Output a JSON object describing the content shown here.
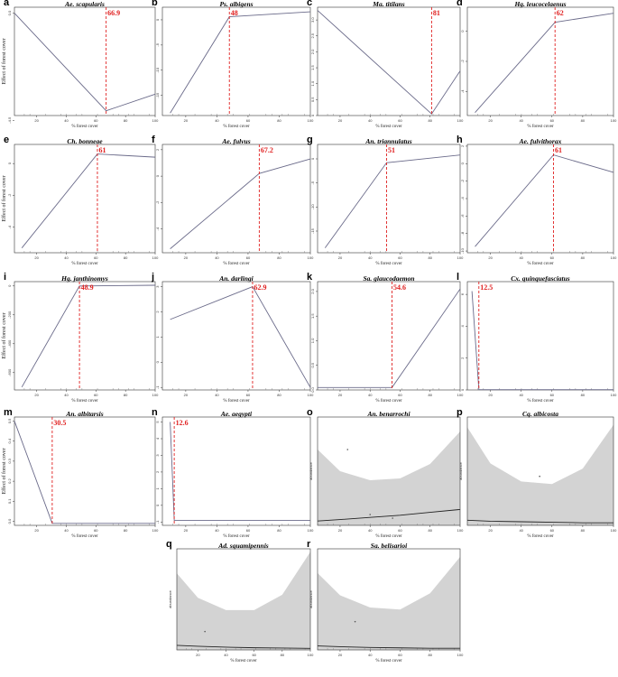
{
  "colors": {
    "line": "#6b6b8a",
    "breakpoint": "#e02020",
    "ribbon": "#d3d3d3",
    "fit": "#222222",
    "axis": "#333333"
  },
  "chart_data": [
    {
      "letter": "a",
      "title": "Ae. scapularis",
      "type": "line",
      "xlabel": "% forest cover",
      "ylabel": "Effect of forest cover",
      "x": [
        5,
        66.9,
        100
      ],
      "y": [
        0.0,
        -4.1,
        -3.4
      ],
      "breakpoint": 66.9,
      "breakpoint_label": "66.9",
      "xlim": [
        5,
        100
      ],
      "ylim": [
        -4.3,
        0.25
      ],
      "xticks": [
        20,
        40,
        60,
        80,
        100
      ],
      "yticks": [
        0,
        -4.5
      ],
      "ytick_labels": [
        "0.0",
        "-4.5"
      ]
    },
    {
      "letter": "b",
      "title": "Ps. albigens",
      "type": "line",
      "xlabel": "% forest cover",
      "ylabel": "",
      "x": [
        10,
        48,
        100
      ],
      "y": [
        -18.5,
        0.6,
        1.6
      ],
      "breakpoint": 48,
      "breakpoint_label": "48",
      "xlim": [
        5,
        100
      ],
      "ylim": [
        -19,
        2.5
      ],
      "xticks": [
        20,
        40,
        60,
        80,
        100
      ],
      "yticks": [
        0,
        -5,
        -10,
        -15
      ],
      "ytick_labels": [
        "0",
        "-5",
        "-10",
        "-15"
      ]
    },
    {
      "letter": "c",
      "title": "Ma. titilans",
      "type": "line",
      "xlabel": "% forest cover",
      "ylabel": "",
      "x": [
        5,
        81,
        100
      ],
      "y": [
        3.3,
        0.05,
        1.4
      ],
      "breakpoint": 81,
      "breakpoint_label": "81",
      "xlim": [
        5,
        100
      ],
      "ylim": [
        0,
        3.4
      ],
      "xticks": [
        20,
        40,
        60,
        80,
        100
      ],
      "yticks": [
        0,
        0.5,
        1,
        1.5,
        2,
        2.5,
        3
      ],
      "ytick_labels": [
        "0",
        "0.5",
        "1.0",
        "1.5",
        "2.0",
        "2.5",
        "3.0"
      ]
    },
    {
      "letter": "d",
      "title": "Hg. leucocelaenus",
      "type": "line",
      "xlabel": "% forest cover",
      "ylabel": "",
      "x": [
        10,
        62,
        100
      ],
      "y": [
        -5.4,
        0.6,
        1.2
      ],
      "breakpoint": 62,
      "breakpoint_label": "62",
      "xlim": [
        5,
        100
      ],
      "ylim": [
        -5.6,
        1.6
      ],
      "xticks": [
        20,
        40,
        60,
        80,
        100
      ],
      "yticks": [
        0,
        -2,
        -4
      ],
      "ytick_labels": [
        "0",
        "-2",
        "-4"
      ]
    },
    {
      "letter": "e",
      "title": "Ch. bonneae",
      "type": "line",
      "xlabel": "% forest cover",
      "ylabel": "Effect of forest cover",
      "x": [
        10,
        61,
        100
      ],
      "y": [
        -5.3,
        0.6,
        0.4
      ],
      "breakpoint": 61,
      "breakpoint_label": "61",
      "xlim": [
        5,
        100
      ],
      "ylim": [
        -5.6,
        1.2
      ],
      "xticks": [
        20,
        40,
        60,
        80,
        100
      ],
      "yticks": [
        0,
        -2,
        -4
      ],
      "ytick_labels": [
        "0",
        "-2",
        "-4"
      ]
    },
    {
      "letter": "f",
      "title": "Ae. fulvus",
      "type": "line",
      "xlabel": "% forest cover",
      "ylabel": "",
      "x": [
        10,
        67.2,
        100
      ],
      "y": [
        -5.5,
        0.2,
        1.3
      ],
      "breakpoint": 67.2,
      "breakpoint_label": "67.2",
      "xlim": [
        5,
        100
      ],
      "ylim": [
        -5.8,
        2.4
      ],
      "xticks": [
        20,
        40,
        60,
        80,
        100
      ],
      "yticks": [
        2,
        0,
        -2,
        -4
      ],
      "ytick_labels": [
        "2",
        "0",
        "-2",
        "-4"
      ]
    },
    {
      "letter": "g",
      "title": "An. triannulatus",
      "type": "line",
      "xlabel": "% forest cover",
      "ylabel": "",
      "x": [
        10,
        51,
        100
      ],
      "y": [
        -18.5,
        -0.8,
        0.8
      ],
      "breakpoint": 51,
      "breakpoint_label": "51",
      "xlim": [
        5,
        100
      ],
      "ylim": [
        -19.5,
        3
      ],
      "xticks": [
        20,
        40,
        60,
        80,
        100
      ],
      "yticks": [
        0,
        -5,
        -10,
        -15
      ],
      "ytick_labels": [
        "0",
        "-5",
        "-10",
        "-15"
      ]
    },
    {
      "letter": "h",
      "title": "Ae. fulvithorax",
      "type": "line",
      "xlabel": "% forest cover",
      "ylabel": "",
      "x": [
        10,
        61,
        100
      ],
      "y": [
        -9.5,
        1.0,
        -1.0
      ],
      "breakpoint": 61,
      "breakpoint_label": "61",
      "xlim": [
        5,
        100
      ],
      "ylim": [
        -10.2,
        2.2
      ],
      "xticks": [
        20,
        40,
        60,
        80,
        100
      ],
      "yticks": [
        2,
        0,
        -2,
        -4,
        -6,
        -8,
        -10
      ],
      "ytick_labels": [
        "2",
        "0",
        "-2",
        "-4",
        "-6",
        "-8",
        "-10"
      ]
    },
    {
      "letter": "i",
      "title": "Hg. janthinomys",
      "type": "line",
      "xlabel": "% forest cover",
      "ylabel": "Effect of forest cover",
      "x": [
        10,
        48.9,
        100
      ],
      "y": [
        -700,
        0,
        5
      ],
      "breakpoint": 48.9,
      "breakpoint_label": "48.9",
      "xlim": [
        5,
        100
      ],
      "ylim": [
        -720,
        30
      ],
      "xticks": [
        20,
        40,
        60,
        80,
        100
      ],
      "yticks": [
        0,
        -200,
        -400,
        -600
      ],
      "ytick_labels": [
        "0",
        "-200",
        "-400",
        "-600"
      ]
    },
    {
      "letter": "j",
      "title": "An. darlingi",
      "type": "line",
      "xlabel": "% forest cover",
      "ylabel": "",
      "x": [
        10,
        62.9,
        100
      ],
      "y": [
        1.7,
        3.0,
        -1.0
      ],
      "breakpoint": 62.9,
      "breakpoint_label": "62.9",
      "xlim": [
        5,
        100
      ],
      "ylim": [
        -1.1,
        3.2
      ],
      "xticks": [
        20,
        40,
        60,
        80,
        100
      ],
      "yticks": [
        3,
        2,
        1,
        0,
        -1
      ],
      "ytick_labels": [
        "3",
        "2",
        "1",
        "0",
        "-1"
      ]
    },
    {
      "letter": "k",
      "title": "Sa. glaucodaemon",
      "type": "line",
      "xlabel": "% forest cover",
      "ylabel": "",
      "x": [
        5,
        54.6,
        100
      ],
      "y": [
        0.05,
        0.05,
        2.05
      ],
      "breakpoint": 54.6,
      "breakpoint_label": "54.6",
      "xlim": [
        5,
        100
      ],
      "ylim": [
        0,
        2.2
      ],
      "xticks": [
        20,
        40,
        60,
        80,
        100
      ],
      "yticks": [
        0,
        0.5,
        1,
        1.5,
        2
      ],
      "ytick_labels": [
        "0.0",
        "0.5",
        "1.0",
        "1.5",
        "2.0"
      ]
    },
    {
      "letter": "l",
      "title": "Cx. quinquefasciatus",
      "type": "line",
      "xlabel": "% forest cover",
      "ylabel": "",
      "x": [
        8,
        12.5,
        100
      ],
      "y": [
        6.2,
        0.02,
        0.02
      ],
      "breakpoint": 12.5,
      "breakpoint_label": "12.5",
      "xlim": [
        5,
        100
      ],
      "ylim": [
        0,
        6.8
      ],
      "xticks": [
        20,
        40,
        60,
        80,
        100
      ],
      "yticks": [
        0,
        2,
        4,
        6
      ],
      "ytick_labels": [
        "0",
        "2",
        "4",
        "6"
      ]
    },
    {
      "letter": "m",
      "title": "An. albitarsis",
      "type": "line",
      "xlabel": "% forest cover",
      "ylabel": "Effect of forest cover",
      "x": [
        5,
        30.5,
        100
      ],
      "y": [
        0.5,
        -0.01,
        -0.01
      ],
      "breakpoint": 30.5,
      "breakpoint_label": "30.5",
      "xlim": [
        5,
        100
      ],
      "ylim": [
        -0.02,
        0.52
      ],
      "xticks": [
        20,
        40,
        60,
        80,
        100
      ],
      "yticks": [
        0,
        0.1,
        0.2,
        0.3,
        0.4,
        0.5
      ],
      "ytick_labels": [
        "0.0",
        "0.1",
        "0.2",
        "0.3",
        "0.4",
        "0.5"
      ]
    },
    {
      "letter": "n",
      "title": "Ae. aegypti",
      "type": "line",
      "xlabel": "% forest cover",
      "ylabel": "",
      "x": [
        10,
        12.6,
        100
      ],
      "y": [
        5.0,
        -0.9,
        -0.9
      ],
      "breakpoint": 12.6,
      "breakpoint_label": "12.6",
      "xlim": [
        5,
        100
      ],
      "ylim": [
        -1.2,
        5.3
      ],
      "xticks": [
        20,
        40,
        60,
        80,
        100
      ],
      "yticks": [
        5,
        4,
        3,
        2,
        1,
        0,
        -1
      ],
      "ytick_labels": [
        "5",
        "4",
        "3",
        "2",
        "1",
        "0",
        "-1"
      ]
    },
    {
      "letter": "o",
      "title": "An. benarrochi",
      "type": "area",
      "xlabel": "% forest cover",
      "ylabel": "abundance",
      "x": [
        5,
        20,
        40,
        60,
        80,
        100
      ],
      "fit": [
        0.12,
        0.16,
        0.22,
        0.28,
        0.36,
        0.44
      ],
      "upper": [
        2.1,
        1.5,
        1.25,
        1.3,
        1.7,
        2.6
      ],
      "lower": [
        0,
        0,
        0,
        0,
        0,
        0
      ],
      "points": [
        [
          25,
          2.1
        ],
        [
          40,
          0.3
        ],
        [
          55,
          0.2
        ]
      ],
      "xlim": [
        5,
        100
      ],
      "ylim": [
        0,
        3
      ],
      "xticks": [
        20,
        40,
        60,
        80,
        100
      ],
      "yticks": [],
      "ytick_labels": []
    },
    {
      "letter": "p",
      "title": "Cq. albicosta",
      "type": "area",
      "xlabel": "% forest cover",
      "ylabel": "abundance",
      "x": [
        5,
        20,
        40,
        60,
        80,
        100
      ],
      "fit": [
        0.1,
        0.08,
        0.07,
        0.06,
        0.05,
        0.05
      ],
      "upper": [
        1.9,
        1.2,
        0.85,
        0.8,
        1.1,
        1.95
      ],
      "lower": [
        0,
        0,
        0,
        0,
        0,
        0
      ],
      "points": [
        [
          52,
          0.95
        ]
      ],
      "xlim": [
        5,
        100
      ],
      "ylim": [
        0,
        2.1
      ],
      "xticks": [
        20,
        40,
        60,
        80,
        100
      ],
      "yticks": [],
      "ytick_labels": []
    },
    {
      "letter": "q",
      "title": "Ad. squamipennis",
      "type": "area",
      "xlabel": "% forest cover",
      "ylabel": "abundance",
      "x": [
        5,
        20,
        40,
        60,
        80,
        100
      ],
      "fit": [
        0.15,
        0.12,
        0.09,
        0.07,
        0.06,
        0.05
      ],
      "upper": [
        2.5,
        1.7,
        1.3,
        1.3,
        1.8,
        3.2
      ],
      "lower": [
        0,
        0,
        0,
        0,
        0,
        0
      ],
      "points": [
        [
          25,
          0.6
        ]
      ],
      "xlim": [
        5,
        100
      ],
      "ylim": [
        0,
        3.3
      ],
      "xticks": [
        20,
        40,
        60,
        80,
        100
      ],
      "yticks": [],
      "ytick_labels": []
    },
    {
      "letter": "r",
      "title": "Sa. belisarioi",
      "type": "area",
      "xlabel": "% forest cover",
      "ylabel": "abundance",
      "x": [
        5,
        20,
        40,
        60,
        80,
        100
      ],
      "fit": [
        0.1,
        0.08,
        0.06,
        0.05,
        0.04,
        0.04
      ],
      "upper": [
        1.9,
        1.35,
        1.05,
        1.0,
        1.4,
        2.3
      ],
      "lower": [
        0,
        0,
        0,
        0,
        0,
        0
      ],
      "points": [
        [
          30,
          0.7
        ]
      ],
      "xlim": [
        5,
        100
      ],
      "ylim": [
        0,
        2.5
      ],
      "xticks": [
        20,
        40,
        60,
        80,
        100
      ],
      "yticks": [],
      "ytick_labels": []
    }
  ]
}
